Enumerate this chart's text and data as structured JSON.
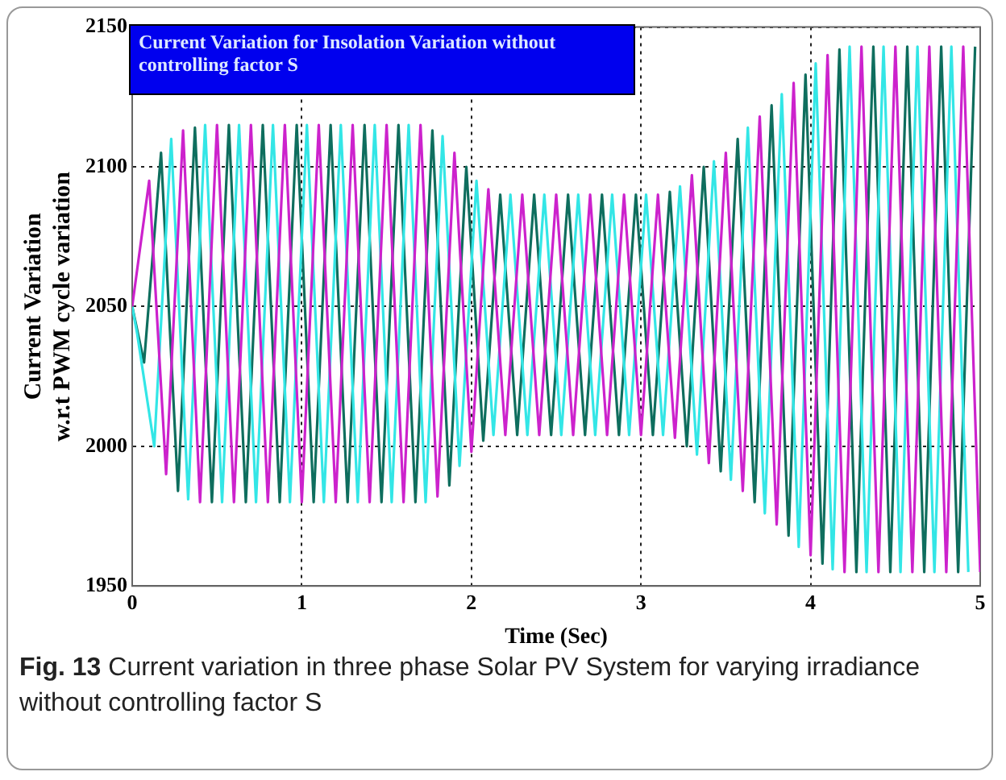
{
  "chart_data": {
    "type": "line",
    "title": "Current Variation for Insolation Variation without controlling factor S",
    "xlabel": "Time (Sec)",
    "ylabel": "Current Variation\nw.r.t PWM cycle variation",
    "annotations": [
      "Fig. 13 Current variation in three phase Solar PV System for varying irradiance without controlling factor S"
    ],
    "xlim": [
      0,
      5
    ],
    "xticks": [
      0,
      1,
      2,
      3,
      4,
      5
    ],
    "ylim": [
      1950,
      2150
    ],
    "yticks": [
      1950,
      2000,
      2050,
      2100,
      2150
    ],
    "grid": true,
    "line_style": "solid",
    "marker": "none",
    "series": [
      {
        "color": "#cc22cc",
        "x": [
          0,
          0.1,
          0.2,
          0.3,
          0.4,
          0.5,
          0.6,
          0.7,
          0.8,
          0.9,
          1,
          1.1,
          1.2,
          1.3,
          1.4,
          1.5,
          1.6,
          1.7,
          1.8,
          1.9,
          2,
          2.1,
          2.2,
          2.3,
          2.4,
          2.5,
          2.6,
          2.7,
          2.8,
          2.9,
          3,
          3.1,
          3.2,
          3.3,
          3.4,
          3.5,
          3.6,
          3.7,
          3.8,
          3.9,
          4,
          4.1,
          4.2,
          4.3,
          4.4,
          4.5,
          4.6,
          4.7,
          4.8,
          4.9,
          5
        ],
        "values": [
          2050,
          2095,
          1990,
          2113,
          1980,
          2115,
          1980,
          2115,
          1980,
          2115,
          1980,
          2115,
          1980,
          2115,
          1980,
          2115,
          1980,
          2115,
          1982,
          2105,
          1998,
          2092,
          2004,
          2090,
          2004,
          2090,
          2004,
          2090,
          2004,
          2090,
          2004,
          2090,
          2003,
          2097,
          1994,
          2105,
          1984,
          2118,
          1972,
          2130,
          1961,
          2140,
          1955,
          2143,
          1955,
          2143,
          1955,
          2143,
          1955,
          2143,
          1955
        ]
      },
      {
        "color": "#33e6e6",
        "x": [
          0,
          0.03,
          0.13,
          0.23,
          0.33,
          0.43,
          0.53,
          0.63,
          0.73,
          0.83,
          0.93,
          1.03,
          1.13,
          1.23,
          1.33,
          1.43,
          1.53,
          1.63,
          1.73,
          1.83,
          1.93,
          2.03,
          2.13,
          2.23,
          2.33,
          2.43,
          2.53,
          2.63,
          2.73,
          2.83,
          2.93,
          3.03,
          3.13,
          3.23,
          3.33,
          3.43,
          3.53,
          3.63,
          3.73,
          3.83,
          3.93,
          4.03,
          4.13,
          4.23,
          4.33,
          4.43,
          4.53,
          4.63,
          4.73,
          4.83,
          4.93
        ],
        "values": [
          2050,
          2040,
          2000,
          2110,
          1981,
          2115,
          1980,
          2115,
          1980,
          2115,
          1980,
          2115,
          1980,
          2115,
          1980,
          2115,
          1980,
          2115,
          1980,
          2111,
          1993,
          2095,
          2004,
          2090,
          2004,
          2090,
          2004,
          2090,
          2004,
          2090,
          2004,
          2090,
          2004,
          2093,
          1997,
          2102,
          1988,
          2114,
          1976,
          2126,
          1964,
          2137,
          1956,
          2143,
          1955,
          2143,
          1955,
          2143,
          1955,
          2143,
          1955
        ]
      },
      {
        "color": "#0e6e5e",
        "x": [
          0,
          0.07,
          0.17,
          0.27,
          0.37,
          0.47,
          0.57,
          0.67,
          0.77,
          0.87,
          0.97,
          1.07,
          1.17,
          1.27,
          1.37,
          1.47,
          1.57,
          1.67,
          1.77,
          1.87,
          1.97,
          2.07,
          2.17,
          2.27,
          2.37,
          2.47,
          2.57,
          2.67,
          2.77,
          2.87,
          2.97,
          3.07,
          3.17,
          3.27,
          3.37,
          3.47,
          3.57,
          3.67,
          3.77,
          3.87,
          3.97,
          4.07,
          4.17,
          4.27,
          4.37,
          4.47,
          4.57,
          4.67,
          4.77,
          4.87,
          4.97
        ],
        "values": [
          2050,
          2030,
          2105,
          1984,
          2114,
          1980,
          2115,
          1980,
          2115,
          1980,
          2115,
          1980,
          2115,
          1980,
          2115,
          1980,
          2115,
          1980,
          2113,
          1986,
          2100,
          2002,
          2090,
          2004,
          2090,
          2004,
          2090,
          2004,
          2090,
          2004,
          2090,
          2004,
          2091,
          2000,
          2100,
          1991,
          2110,
          1980,
          2122,
          1968,
          2133,
          1958,
          2142,
          1955,
          2143,
          1955,
          2143,
          1955,
          2143,
          1955,
          2143
        ]
      }
    ]
  }
}
